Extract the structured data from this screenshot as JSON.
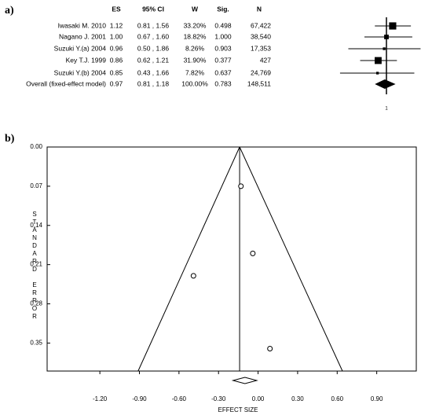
{
  "chart_data": [
    {
      "type": "forest",
      "panel_label": "a)",
      "columns": [
        "ES",
        "95% CI",
        "W",
        "Sig.",
        "N"
      ],
      "studies": [
        "Iwasaki M. 2010",
        "Nagano J. 2001",
        "Suzuki Y.(a) 2004",
        "Key T.J. 1999",
        "Suzuki Y.(b) 2004",
        "Overall (fixed-effect model)"
      ],
      "values": [
        1.12,
        1.0,
        0.96,
        0.86,
        0.85,
        0.97
      ],
      "value_labels": [
        "1.12",
        "1.00",
        "0.96",
        "0.86",
        "0.85",
        "0.97"
      ],
      "ci_low": [
        0.81,
        0.67,
        0.5,
        0.62,
        0.43,
        0.81
      ],
      "ci_high": [
        1.56,
        1.6,
        1.86,
        1.21,
        1.66,
        1.18
      ],
      "ci_labels": [
        "0.81 , 1.56",
        "0.67 , 1.60",
        "0.50 , 1.86",
        "0.62 , 1.21",
        "0.43 , 1.66",
        "0.81 , 1.18"
      ],
      "weights": [
        33.2,
        18.82,
        8.26,
        31.9,
        7.82,
        100
      ],
      "weight_labels": [
        "33.20%",
        "18.82%",
        "8.26%",
        "31.90%",
        "7.82%",
        "100.00%"
      ],
      "sig": [
        "0.498",
        "1.000",
        "0.903",
        "0.377",
        "0.637",
        "0.783"
      ],
      "n": [
        "67,422",
        "38,540",
        "17,353",
        "427",
        "24,769",
        "148,511"
      ],
      "log_scale": true,
      "xticks": [
        1
      ],
      "color": "#000000"
    },
    {
      "type": "funnel",
      "panel_label": "b)",
      "x_label": "EFFECT SIZE",
      "y_label": "STANDARD ERROR",
      "x": [
        -0.13,
        -0.04,
        -0.49,
        0.09
      ],
      "values": [
        0.07,
        0.19,
        0.23,
        0.36
      ],
      "pooled_effect": -0.14,
      "funnel_bounds": [
        -0.91,
        0.64
      ],
      "summary_diamond": [
        -0.19,
        -0.1,
        -0.01
      ],
      "xlim": [
        -1.6,
        1.2
      ],
      "ylim": [
        0,
        0.4
      ],
      "y_inverted": true,
      "xticks": [
        {
          "value": -1.2,
          "label": "-1.20"
        },
        {
          "value": -0.9,
          "label": "-0.90"
        },
        {
          "value": -0.6,
          "label": "-0.60"
        },
        {
          "value": -0.3,
          "label": "-0.30"
        },
        {
          "value": 0,
          "label": "0.00"
        },
        {
          "value": 0.3,
          "label": "0.30"
        },
        {
          "value": 0.6,
          "label": "0.60"
        },
        {
          "value": 0.9,
          "label": "0.90"
        }
      ],
      "yticks": [
        {
          "value": 0,
          "label": "0.00"
        },
        {
          "value": 0.07,
          "label": "0.07"
        },
        {
          "value": 0.14,
          "label": "0.14"
        },
        {
          "value": 0.21,
          "label": "0.21"
        },
        {
          "value": 0.28,
          "label": "0.28"
        },
        {
          "value": 0.35,
          "label": "0.35"
        }
      ],
      "color": "#000000"
    }
  ]
}
